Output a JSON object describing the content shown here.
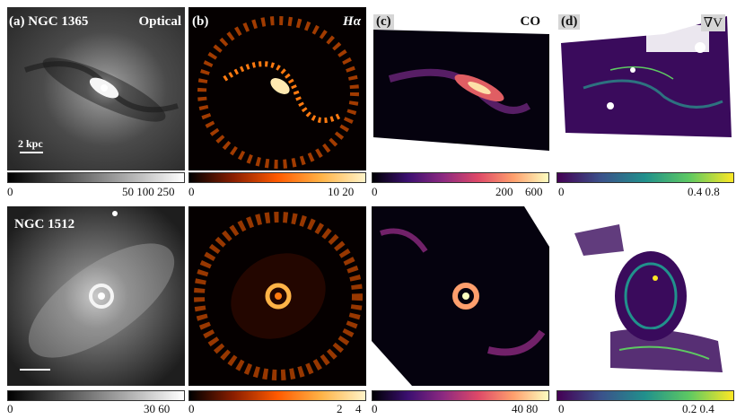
{
  "rows": [
    {
      "galaxy": "NGC 1365",
      "scale_label": "2 kpc",
      "panels": [
        {
          "letter": "(a)",
          "title": "Optical",
          "ticks": [
            "0",
            "50 100 250"
          ]
        },
        {
          "letter": "(b)",
          "title": "Hα",
          "ticks": [
            "0",
            "10 20"
          ]
        },
        {
          "letter": "(c)",
          "title": "CO",
          "ticks": [
            "0",
            "200",
            "600"
          ]
        },
        {
          "letter": "(d)",
          "title": "∇V",
          "ticks": [
            "0",
            "0.4 0.8"
          ]
        }
      ]
    },
    {
      "galaxy": "NGC 1512",
      "scale_label": "",
      "panels": [
        {
          "ticks": [
            "0",
            "30 60"
          ]
        },
        {
          "ticks": [
            "0",
            "2",
            "4"
          ]
        },
        {
          "ticks": [
            "0",
            "40 80"
          ]
        },
        {
          "ticks": [
            "0",
            "0.2 0.4"
          ]
        }
      ]
    }
  ],
  "colormaps": {
    "gray": [
      "#000000",
      "#ffffff"
    ],
    "hot": [
      "#000000",
      "#8a1e00",
      "#ff5a00",
      "#ffb347",
      "#fff3c8"
    ],
    "magma": [
      "#000004",
      "#3b0f70",
      "#8c2981",
      "#de4968",
      "#fe9f6d",
      "#fcfdbf"
    ],
    "viridis": [
      "#440154",
      "#3b528b",
      "#21918c",
      "#5ec962",
      "#fde725"
    ]
  }
}
